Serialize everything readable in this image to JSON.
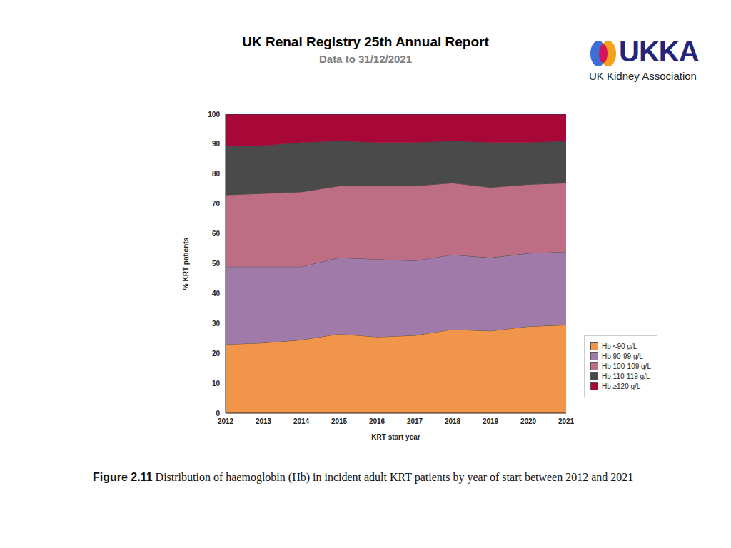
{
  "header": {
    "title": "UK Renal Registry 25th Annual Report",
    "subtitle": "Data to 31/12/2021"
  },
  "logo": {
    "text": "UKKA",
    "subtext": "UK Kidney Association"
  },
  "caption": {
    "label": "Figure 2.11",
    "text": "Distribution of haemoglobin (Hb) in incident adult KRT patients by year of start between 2012 and 2021"
  },
  "chart_data": {
    "type": "area",
    "stacked": true,
    "grid": false,
    "legend": "right",
    "x_label": "KRT start year",
    "y_label": "% KRT patients",
    "x": [
      2012,
      2013,
      2014,
      2015,
      2016,
      2017,
      2018,
      2019,
      2020,
      2021
    ],
    "xlim": [
      2012,
      2021
    ],
    "xticks": [
      2012,
      2013,
      2014,
      2015,
      2016,
      2017,
      2018,
      2019,
      2020,
      2021
    ],
    "ylim": [
      0,
      100
    ],
    "yticks": [
      0,
      10,
      20,
      30,
      40,
      50,
      60,
      70,
      80,
      90,
      100
    ],
    "series": [
      {
        "name": "Hb <90 g/L",
        "color": "#f0954a",
        "values": [
          23,
          23.5,
          24.5,
          26.5,
          25.5,
          26,
          28,
          27.5,
          29,
          29.5
        ]
      },
      {
        "name": "Hb 90-99 g/L",
        "color": "#a07aa8",
        "values": [
          26,
          25.5,
          24.5,
          25.5,
          26,
          25,
          25,
          24.5,
          24.5,
          24.5
        ]
      },
      {
        "name": "Hb 100-109 g/L",
        "color": "#be6e84",
        "values": [
          24,
          24.5,
          25,
          24,
          24.5,
          25,
          24,
          23.5,
          23,
          23
        ]
      },
      {
        "name": "Hb 110-119 g/L",
        "color": "#4a4a4a",
        "values": [
          16.5,
          16,
          16.5,
          15,
          14.5,
          14.5,
          14,
          15,
          14,
          14
        ]
      },
      {
        "name": "Hb ≥120 g/L",
        "color": "#a80838",
        "values": [
          10.5,
          10.5,
          9.5,
          9,
          9.5,
          9.5,
          9,
          9.5,
          9.5,
          9
        ]
      }
    ]
  }
}
